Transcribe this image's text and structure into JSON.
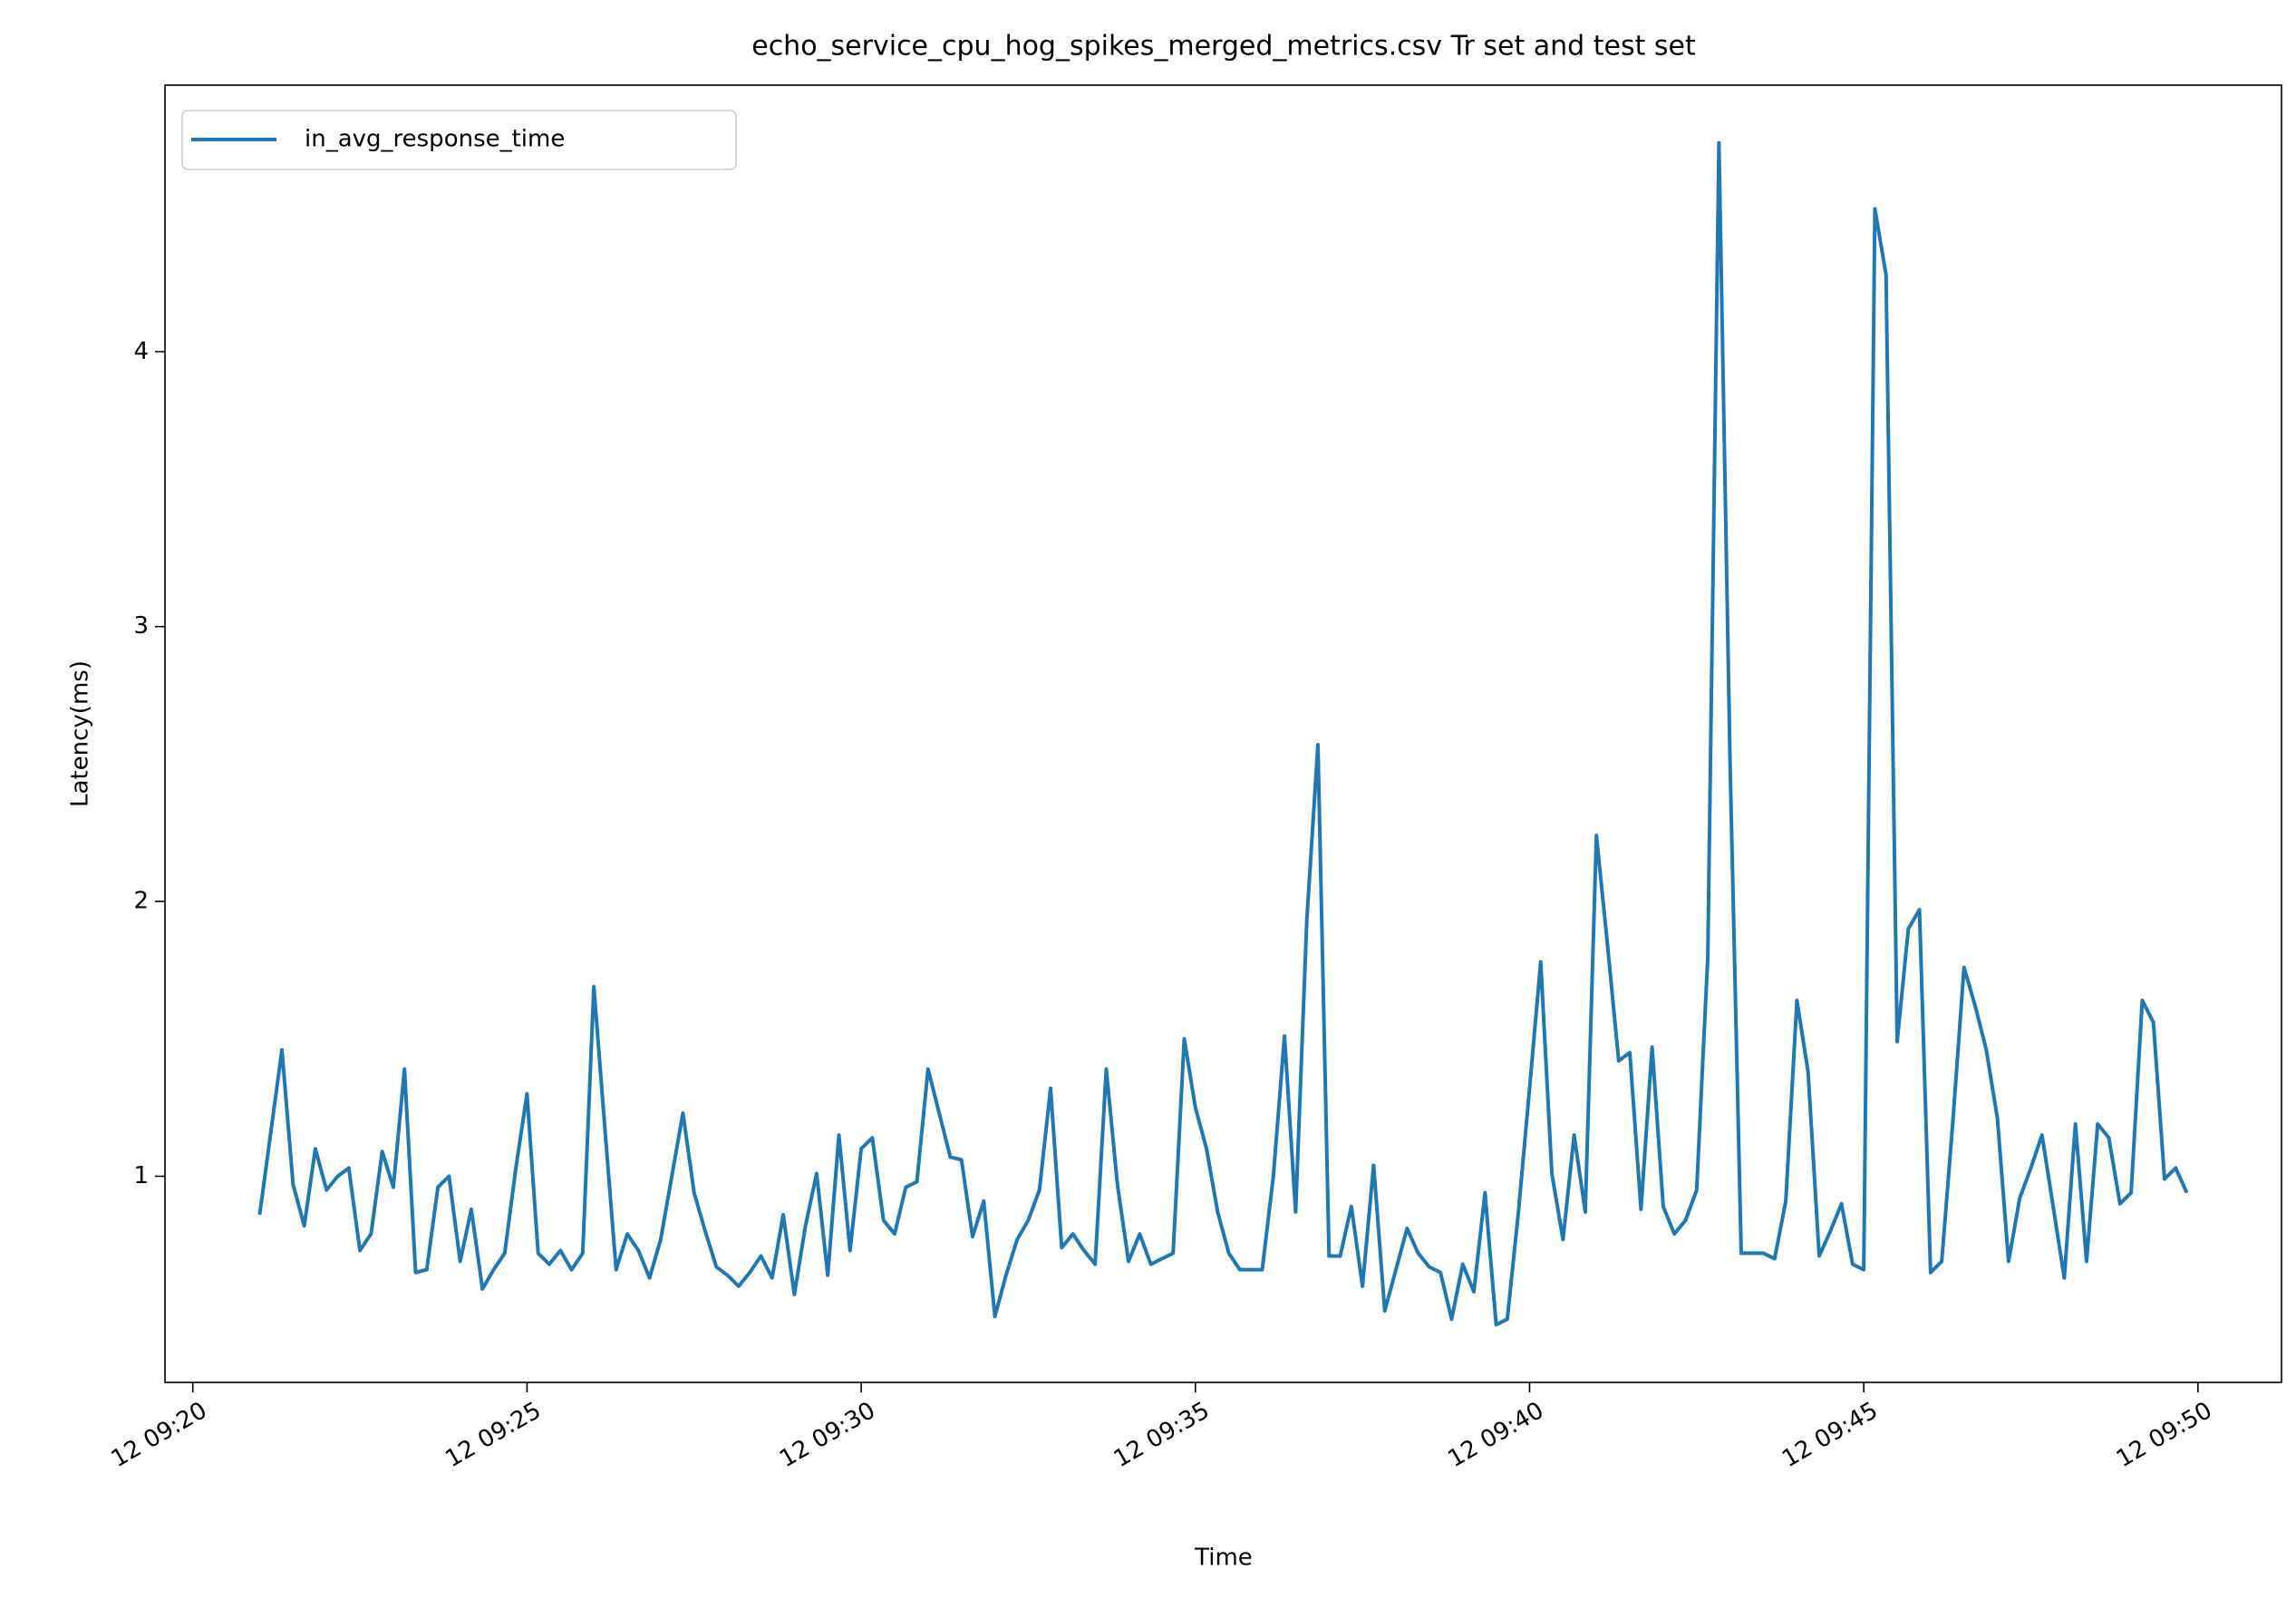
{
  "chart_data": {
    "type": "line",
    "title": "echo_service_cpu_hog_spikes_merged_metrics.csv Tr set and test set",
    "xlabel": "Time",
    "ylabel": "Latency(ms)",
    "x": [
      "12 09:21:00",
      "12 09:21:10",
      "12 09:21:20",
      "12 09:21:30",
      "12 09:21:40",
      "12 09:21:50",
      "12 09:22:00",
      "12 09:22:10",
      "12 09:22:20",
      "12 09:22:30",
      "12 09:22:40",
      "12 09:22:50",
      "12 09:23:00",
      "12 09:23:10",
      "12 09:23:20",
      "12 09:23:30",
      "12 09:23:40",
      "12 09:23:50",
      "12 09:24:00",
      "12 09:24:10",
      "12 09:24:20",
      "12 09:24:30",
      "12 09:24:40",
      "12 09:24:50",
      "12 09:25:00",
      "12 09:25:10",
      "12 09:25:20",
      "12 09:25:30",
      "12 09:25:40",
      "12 09:25:50",
      "12 09:26:00",
      "12 09:26:10",
      "12 09:26:20",
      "12 09:26:30",
      "12 09:26:40",
      "12 09:26:50",
      "12 09:27:00",
      "12 09:27:10",
      "12 09:27:20",
      "12 09:27:30",
      "12 09:27:40",
      "12 09:27:50",
      "12 09:28:00",
      "12 09:28:10",
      "12 09:28:20",
      "12 09:28:30",
      "12 09:28:40",
      "12 09:28:50",
      "12 09:29:00",
      "12 09:29:10",
      "12 09:29:20",
      "12 09:29:30",
      "12 09:29:40",
      "12 09:29:50",
      "12 09:30:00",
      "12 09:30:10",
      "12 09:30:20",
      "12 09:30:30",
      "12 09:30:40",
      "12 09:30:50",
      "12 09:31:00",
      "12 09:31:10",
      "12 09:31:20",
      "12 09:31:30",
      "12 09:31:40",
      "12 09:31:50",
      "12 09:32:00",
      "12 09:32:10",
      "12 09:32:20",
      "12 09:32:30",
      "12 09:32:40",
      "12 09:32:50",
      "12 09:33:00",
      "12 09:33:10",
      "12 09:33:20",
      "12 09:33:30",
      "12 09:33:40",
      "12 09:33:50",
      "12 09:34:00",
      "12 09:34:10",
      "12 09:34:20",
      "12 09:34:30",
      "12 09:34:40",
      "12 09:34:50",
      "12 09:35:00",
      "12 09:35:10",
      "12 09:35:20",
      "12 09:35:30",
      "12 09:35:40",
      "12 09:35:50",
      "12 09:36:00",
      "12 09:36:10",
      "12 09:36:20",
      "12 09:36:30",
      "12 09:36:40",
      "12 09:36:50",
      "12 09:37:00",
      "12 09:37:10",
      "12 09:37:20",
      "12 09:37:30",
      "12 09:37:40",
      "12 09:37:50",
      "12 09:38:00",
      "12 09:38:10",
      "12 09:38:20",
      "12 09:38:30",
      "12 09:38:40",
      "12 09:38:50",
      "12 09:39:00",
      "12 09:39:10",
      "12 09:39:20",
      "12 09:39:30",
      "12 09:39:40",
      "12 09:39:50",
      "12 09:40:00",
      "12 09:40:10",
      "12 09:40:20",
      "12 09:40:30",
      "12 09:40:40",
      "12 09:40:50",
      "12 09:41:00",
      "12 09:41:10",
      "12 09:41:20",
      "12 09:41:30",
      "12 09:41:40",
      "12 09:41:50",
      "12 09:42:00",
      "12 09:42:10",
      "12 09:42:20",
      "12 09:42:30",
      "12 09:42:40",
      "12 09:42:50",
      "12 09:43:00",
      "12 09:43:10",
      "12 09:43:20",
      "12 09:43:30",
      "12 09:43:40",
      "12 09:43:50",
      "12 09:44:00",
      "12 09:44:10",
      "12 09:44:20",
      "12 09:44:30",
      "12 09:44:40",
      "12 09:44:50",
      "12 09:45:00",
      "12 09:45:10",
      "12 09:45:20",
      "12 09:45:30",
      "12 09:45:40",
      "12 09:45:50",
      "12 09:46:00",
      "12 09:46:10",
      "12 09:46:20",
      "12 09:46:30",
      "12 09:46:40",
      "12 09:46:50",
      "12 09:47:00",
      "12 09:47:10",
      "12 09:47:20",
      "12 09:47:30",
      "12 09:47:40",
      "12 09:47:50",
      "12 09:48:00",
      "12 09:48:10",
      "12 09:48:20",
      "12 09:48:30",
      "12 09:48:40",
      "12 09:48:50",
      "12 09:49:00",
      "12 09:49:10",
      "12 09:49:20",
      "12 09:49:30",
      "12 09:49:40",
      "12 09:49:50"
    ],
    "series": [
      {
        "name": "in_avg_response_time",
        "color": "#1f77b4",
        "values": [
          0.86,
          1.16,
          1.46,
          0.97,
          0.82,
          1.1,
          0.95,
          1.0,
          1.03,
          0.73,
          0.79,
          1.09,
          0.96,
          1.39,
          0.65,
          0.66,
          0.96,
          1.0,
          0.69,
          0.88,
          0.59,
          0.66,
          0.72,
          1.03,
          1.3,
          0.72,
          0.68,
          0.73,
          0.66,
          0.72,
          1.69,
          1.17,
          0.66,
          0.79,
          0.73,
          0.63,
          0.77,
          1.0,
          1.23,
          0.94,
          0.8,
          0.67,
          0.64,
          0.6,
          0.65,
          0.71,
          0.63,
          0.86,
          0.57,
          0.82,
          1.01,
          0.64,
          1.15,
          0.73,
          1.1,
          1.14,
          0.84,
          0.79,
          0.96,
          0.98,
          1.39,
          1.23,
          1.07,
          1.06,
          0.78,
          0.91,
          0.49,
          0.64,
          0.77,
          0.84,
          0.95,
          1.32,
          0.74,
          0.79,
          0.73,
          0.68,
          1.39,
          0.97,
          0.69,
          0.79,
          0.68,
          0.7,
          0.72,
          1.5,
          1.25,
          1.1,
          0.87,
          0.72,
          0.66,
          0.66,
          0.66,
          1.0,
          1.51,
          0.87,
          1.93,
          2.57,
          0.71,
          0.71,
          0.89,
          0.6,
          1.04,
          0.51,
          0.66,
          0.81,
          0.72,
          0.67,
          0.65,
          0.48,
          0.68,
          0.58,
          0.94,
          0.46,
          0.48,
          0.87,
          1.32,
          1.78,
          1.01,
          0.77,
          1.15,
          0.87,
          2.24,
          1.84,
          1.42,
          1.45,
          0.88,
          1.47,
          0.89,
          0.79,
          0.84,
          0.95,
          1.8,
          4.76,
          2.5,
          0.72,
          0.72,
          0.72,
          0.7,
          0.91,
          1.64,
          1.38,
          0.71,
          0.8,
          0.9,
          0.68,
          0.66,
          4.52,
          4.28,
          1.49,
          1.9,
          1.97,
          0.65,
          0.69,
          1.2,
          1.76,
          1.62,
          1.46,
          1.21,
          0.69,
          0.92,
          1.03,
          1.15,
          0.89,
          0.63,
          1.19,
          0.69,
          1.19,
          1.14,
          0.9,
          0.94,
          1.64,
          1.56,
          0.99,
          1.03,
          0.94
        ]
      }
    ],
    "xlim": [
      "12 09:19:35",
      "12 09:51:15"
    ],
    "xticks": [
      "12 09:20",
      "12 09:25",
      "12 09:30",
      "12 09:35",
      "12 09:40",
      "12 09:45",
      "12 09:50"
    ],
    "ylim": [
      0.25,
      4.97
    ],
    "yticks": [
      1,
      2,
      3,
      4
    ],
    "grid": false,
    "legend": "upper left"
  }
}
